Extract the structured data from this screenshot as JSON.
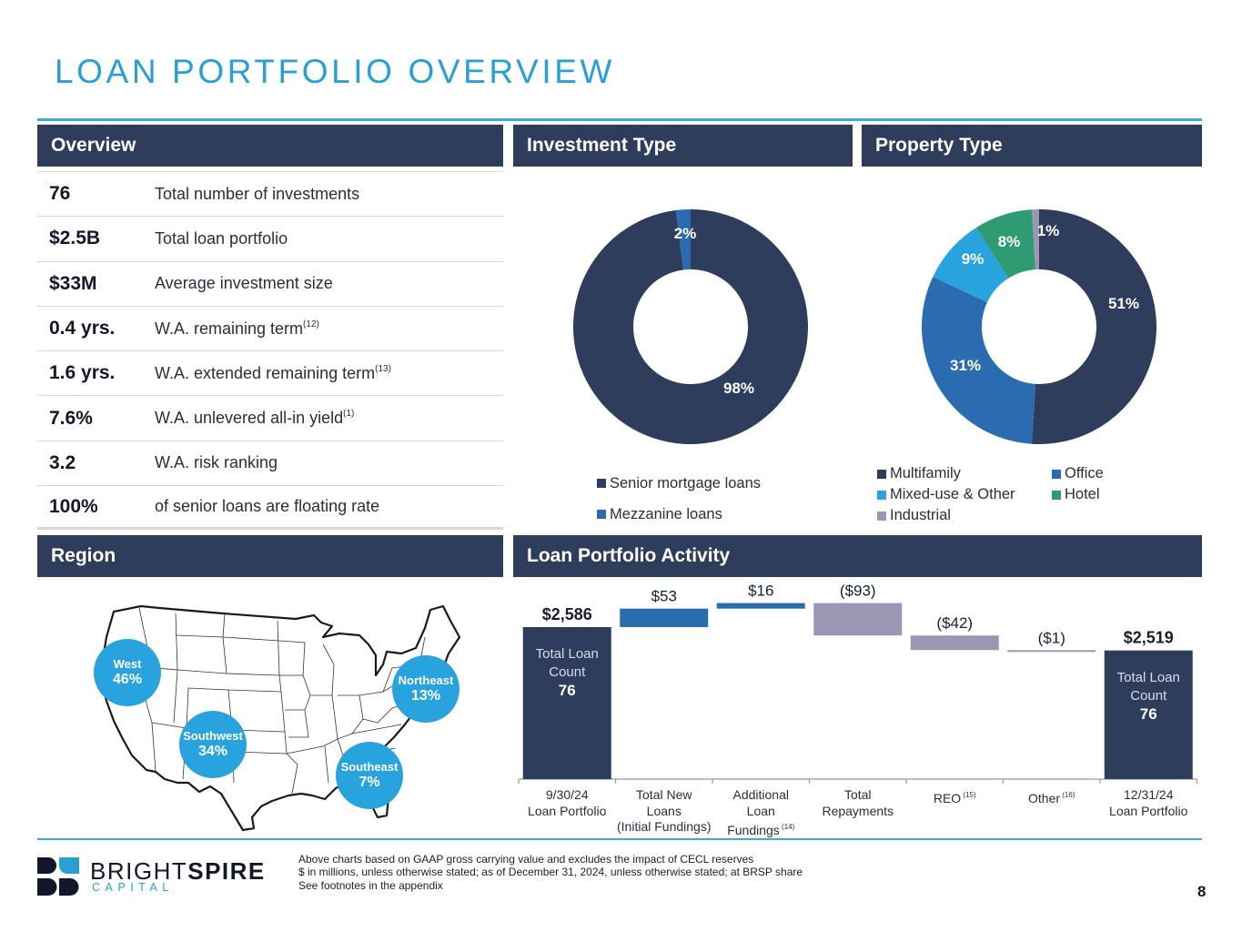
{
  "page": {
    "title": "LOAN PORTFOLIO OVERVIEW",
    "page_number": "8"
  },
  "sections": {
    "overview": "Overview",
    "investment_type": "Investment Type",
    "property_type": "Property Type",
    "region": "Region",
    "activity": "Loan Portfolio Activity"
  },
  "overview": {
    "rows": [
      {
        "value": "76",
        "label": "Total number of investments",
        "note": ""
      },
      {
        "value": "$2.5B",
        "label": "Total loan portfolio",
        "note": ""
      },
      {
        "value": "$33M",
        "label": "Average investment size",
        "note": ""
      },
      {
        "value": "0.4 yrs.",
        "label": "W.A. remaining term",
        "note": "(12)"
      },
      {
        "value": "1.6 yrs.",
        "label": "W.A. extended remaining term",
        "note": "(13)"
      },
      {
        "value": "7.6%",
        "label": "W.A. unlevered all-in yield",
        "note": "(1)"
      },
      {
        "value": "3.2",
        "label": "W.A. risk ranking",
        "note": ""
      },
      {
        "value": "100%",
        "label": "of senior loans are floating rate",
        "note": ""
      }
    ]
  },
  "region": {
    "bubbles": [
      {
        "name": "West",
        "pct": "46%"
      },
      {
        "name": "Southwest",
        "pct": "34%"
      },
      {
        "name": "Northeast",
        "pct": "13%"
      },
      {
        "name": "Southeast",
        "pct": "7%"
      }
    ]
  },
  "chart_data": [
    {
      "type": "pie",
      "title": "Investment Type",
      "donut": true,
      "categories": [
        "Senior mortgage loans",
        "Mezzanine loans"
      ],
      "values": [
        98,
        2
      ],
      "labels": [
        "98%",
        "2%"
      ],
      "colors": [
        "#2e3d5c",
        "#2b6cb0"
      ],
      "legend_position": "bottom"
    },
    {
      "type": "pie",
      "title": "Property Type",
      "donut": true,
      "categories": [
        "Multifamily",
        "Office",
        "Mixed-use & Other",
        "Hotel",
        "Industrial"
      ],
      "values": [
        51,
        31,
        9,
        8,
        1
      ],
      "labels": [
        "51%",
        "31%",
        "9%",
        "8%",
        "1%"
      ],
      "colors": [
        "#2e3d5c",
        "#2b6cb0",
        "#29a3dd",
        "#2e9b72",
        "#9a97b4"
      ],
      "legend_position": "bottom"
    },
    {
      "type": "bar",
      "subtype": "waterfall",
      "title": "Loan Portfolio Activity",
      "units": "$ in millions",
      "categories": [
        "9/30/24 Loan Portfolio",
        "Total New Loans (Initial Fundings)",
        "Additional Loan Fundings (14)",
        "Total Repayments",
        "REO (15)",
        "Other (16)",
        "12/31/24 Loan Portfolio"
      ],
      "category_lines": [
        [
          "9/30/24",
          "Loan Portfolio"
        ],
        [
          "Total New",
          "Loans",
          "(Initial Fundings)"
        ],
        [
          "Additional",
          "Loan",
          "Fundings"
        ],
        [
          "Total",
          "Repayments"
        ],
        [
          "REO"
        ],
        [
          "Other"
        ],
        [
          "12/31/24",
          "Loan Portfolio"
        ]
      ],
      "category_notes": [
        "",
        "",
        "(14)",
        "",
        "(15)",
        "(16)",
        ""
      ],
      "values": [
        2586,
        53,
        16,
        -93,
        -42,
        -1,
        2519
      ],
      "kinds": [
        "total",
        "increase",
        "increase",
        "decrease",
        "decrease",
        "decrease",
        "total"
      ],
      "value_labels": [
        "$2,586",
        "$53",
        "$16",
        "($93)",
        "($42)",
        "($1)",
        "$2,519"
      ],
      "totals_inner": {
        "caption_lines": [
          "Total Loan",
          "Count"
        ],
        "start_count": "76",
        "end_count": "76"
      },
      "colors": {
        "total": "#2e3d5c",
        "increase": "#2b6cb0",
        "decrease": "#9a97b4"
      },
      "ylim": [
        2150,
        2640
      ]
    }
  ],
  "footer": {
    "logo_word_light": "BRIGHT",
    "logo_word_bold": "SPIRE",
    "logo_sub": "CAPITAL",
    "notes": [
      "Above charts based on GAAP gross carrying value and excludes the impact of CECL reserves",
      "$ in millions, unless otherwise stated; as of December 31, 2024, unless otherwise stated; at BRSP share",
      "See footnotes in the appendix"
    ]
  }
}
